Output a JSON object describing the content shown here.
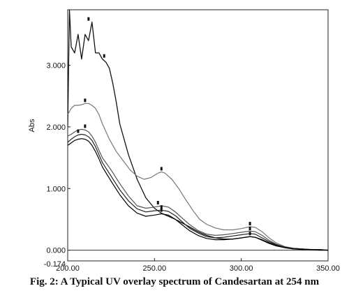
{
  "caption": "Fig. 2: A Typical UV overlay spectrum of Candesartan at 254 nm",
  "chart_data": {
    "type": "line",
    "title": "",
    "xlabel": "",
    "ylabel": "Abs",
    "xlim": [
      200.0,
      350.0
    ],
    "ylim": [
      -0.174,
      3.9
    ],
    "x_ticks": [
      {
        "value": 200,
        "label": "200.00"
      },
      {
        "value": 250,
        "label": "250.00"
      },
      {
        "value": 300,
        "label": "300.00"
      },
      {
        "value": 350,
        "label": "350.00"
      }
    ],
    "y_ticks": [
      {
        "value": -0.174,
        "label": "-0.174"
      },
      {
        "value": 0.0,
        "label": "0.000"
      },
      {
        "value": 1.0,
        "label": "1.000"
      },
      {
        "value": 2.0,
        "label": "2.000"
      },
      {
        "value": 3.0,
        "label": "3.000"
      }
    ],
    "grid": false,
    "legend": "none",
    "zero_line": true,
    "series": [
      {
        "color": "#111111",
        "x": [
          200,
          201,
          202,
          204,
          206,
          208,
          210,
          212,
          214,
          216,
          218,
          220,
          222,
          224,
          226,
          228,
          230,
          235,
          240,
          245,
          250,
          254,
          258,
          262,
          266,
          270,
          275,
          280,
          285,
          290,
          295,
          300,
          305,
          308,
          312,
          316,
          320,
          325,
          330,
          335,
          340,
          345,
          350
        ],
        "y": [
          2.0,
          3.9,
          3.3,
          3.2,
          3.5,
          3.1,
          3.5,
          3.4,
          3.7,
          3.2,
          3.2,
          3.1,
          3.05,
          2.95,
          2.7,
          2.4,
          2.05,
          1.55,
          1.15,
          0.85,
          0.68,
          0.6,
          0.55,
          0.5,
          0.44,
          0.38,
          0.3,
          0.24,
          0.2,
          0.18,
          0.18,
          0.2,
          0.22,
          0.21,
          0.17,
          0.12,
          0.08,
          0.05,
          0.03,
          0.02,
          0.01,
          0.01,
          0.0
        ]
      },
      {
        "color": "#777777",
        "x": [
          200,
          202,
          204,
          206,
          208,
          210,
          212,
          214,
          216,
          218,
          220,
          224,
          228,
          232,
          236,
          240,
          244,
          248,
          252,
          254,
          256,
          260,
          264,
          268,
          272,
          276,
          280,
          285,
          290,
          295,
          300,
          305,
          308,
          312,
          316,
          320,
          325,
          330,
          335,
          340,
          345,
          350
        ],
        "y": [
          2.2,
          2.3,
          2.35,
          2.35,
          2.36,
          2.38,
          2.38,
          2.35,
          2.3,
          2.2,
          2.05,
          1.8,
          1.6,
          1.45,
          1.3,
          1.2,
          1.15,
          1.18,
          1.25,
          1.27,
          1.25,
          1.15,
          1.0,
          0.82,
          0.65,
          0.5,
          0.42,
          0.36,
          0.33,
          0.33,
          0.35,
          0.38,
          0.37,
          0.3,
          0.2,
          0.12,
          0.06,
          0.03,
          0.02,
          0.01,
          0.01,
          0.0
        ]
      },
      {
        "color": "#555555",
        "x": [
          200,
          202,
          204,
          206,
          208,
          210,
          212,
          214,
          216,
          218,
          220,
          225,
          230,
          235,
          240,
          245,
          250,
          254,
          258,
          262,
          266,
          270,
          275,
          280,
          285,
          290,
          295,
          300,
          305,
          308,
          312,
          316,
          320,
          325,
          330,
          335,
          340,
          345,
          350
        ],
        "y": [
          1.85,
          1.88,
          1.92,
          1.95,
          1.96,
          1.95,
          1.92,
          1.85,
          1.75,
          1.62,
          1.5,
          1.3,
          1.08,
          0.88,
          0.72,
          0.68,
          0.7,
          0.72,
          0.7,
          0.62,
          0.52,
          0.42,
          0.32,
          0.26,
          0.24,
          0.25,
          0.27,
          0.29,
          0.31,
          0.3,
          0.24,
          0.16,
          0.1,
          0.05,
          0.03,
          0.02,
          0.01,
          0.01,
          0.0
        ]
      },
      {
        "color": "#222222",
        "x": [
          200,
          202,
          204,
          206,
          208,
          210,
          212,
          214,
          216,
          218,
          220,
          225,
          230,
          235,
          240,
          245,
          250,
          254,
          258,
          262,
          266,
          270,
          275,
          280,
          285,
          290,
          295,
          300,
          305,
          308,
          312,
          316,
          320,
          325,
          330,
          335,
          340,
          345,
          350
        ],
        "y": [
          1.75,
          1.8,
          1.84,
          1.87,
          1.88,
          1.87,
          1.84,
          1.78,
          1.68,
          1.55,
          1.42,
          1.2,
          0.98,
          0.8,
          0.67,
          0.62,
          0.64,
          0.65,
          0.63,
          0.56,
          0.46,
          0.36,
          0.28,
          0.22,
          0.2,
          0.21,
          0.23,
          0.25,
          0.27,
          0.26,
          0.2,
          0.14,
          0.09,
          0.05,
          0.03,
          0.02,
          0.01,
          0.01,
          0.0
        ]
      },
      {
        "color": "#000000",
        "x": [
          200,
          202,
          204,
          206,
          208,
          210,
          212,
          214,
          216,
          218,
          220,
          225,
          230,
          235,
          240,
          245,
          250,
          254,
          258,
          262,
          266,
          270,
          275,
          280,
          285,
          290,
          295,
          300,
          305,
          308,
          312,
          316,
          320,
          325,
          330,
          335,
          340,
          345,
          350
        ],
        "y": [
          1.7,
          1.74,
          1.78,
          1.8,
          1.81,
          1.8,
          1.77,
          1.7,
          1.6,
          1.48,
          1.35,
          1.12,
          0.9,
          0.72,
          0.6,
          0.55,
          0.57,
          0.59,
          0.57,
          0.5,
          0.41,
          0.32,
          0.24,
          0.19,
          0.17,
          0.17,
          0.18,
          0.2,
          0.22,
          0.21,
          0.16,
          0.11,
          0.07,
          0.04,
          0.02,
          0.01,
          0.01,
          0.0,
          0.0
        ]
      }
    ],
    "peak_markers": [
      {
        "x": 212,
        "y": 3.7
      },
      {
        "x": 221,
        "y": 3.1
      },
      {
        "x": 210,
        "y": 2.38
      },
      {
        "x": 210,
        "y": 1.96
      },
      {
        "x": 206,
        "y": 1.88
      },
      {
        "x": 254,
        "y": 1.27
      },
      {
        "x": 252,
        "y": 0.72
      },
      {
        "x": 254,
        "y": 0.65
      },
      {
        "x": 254,
        "y": 0.6
      },
      {
        "x": 305,
        "y": 0.38
      },
      {
        "x": 305,
        "y": 0.3
      },
      {
        "x": 305,
        "y": 0.22
      }
    ]
  }
}
